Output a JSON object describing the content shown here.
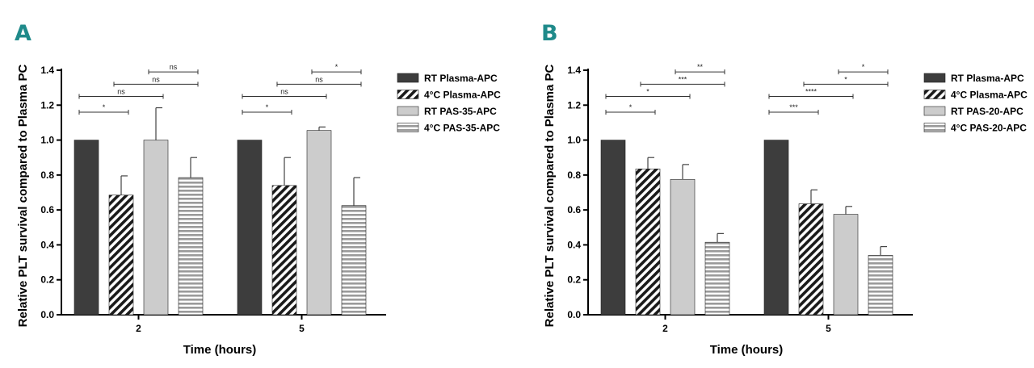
{
  "figure_title": "",
  "colors": {
    "rt_plasma": "#3d3d3d",
    "cold_plasma_stripe": "#1a1a1a",
    "rt_pas": "#cccccc",
    "cold_pas_stripe": "#999999",
    "letter": "#1f8a8a",
    "axis": "#000000"
  },
  "chart_data": [
    {
      "type": "bar",
      "panel": "A",
      "title": "",
      "xlabel": "Time (hours)",
      "ylabel": "Relative PLT survival compared to Plasma PC",
      "ylim": [
        0,
        1.4
      ],
      "yticks": [
        "0.0",
        "0.2",
        "0.4",
        "0.6",
        "0.8",
        "1.0",
        "1.2",
        "1.4"
      ],
      "categories": [
        "2",
        "5"
      ],
      "legend": "top-right",
      "series": [
        {
          "name": "RT  Plasma-APC",
          "values": [
            1.0,
            1.0
          ],
          "errors": [
            0,
            0
          ],
          "fill": "solid-dark"
        },
        {
          "name": "4°C Plasma-APC",
          "values": [
            0.685,
            0.74
          ],
          "errors": [
            0.11,
            0.16
          ],
          "fill": "diagonal"
        },
        {
          "name": "RT  PAS-35-APC",
          "values": [
            1.0,
            1.055
          ],
          "errors": [
            0.185,
            0.02
          ],
          "fill": "solid-light"
        },
        {
          "name": "4°C PAS-35-APC",
          "values": [
            0.785,
            0.625
          ],
          "errors": [
            0.115,
            0.16
          ],
          "fill": "horizontal"
        }
      ],
      "comparisons": [
        {
          "category": "2",
          "from": 0,
          "to": 1,
          "y": 1.16,
          "label": "*"
        },
        {
          "category": "2",
          "from": 0,
          "to": 2,
          "y": 1.25,
          "label": "ns"
        },
        {
          "category": "2",
          "from": 1,
          "to": 3,
          "y": 1.32,
          "label": "ns"
        },
        {
          "category": "2",
          "from": 2,
          "to": 3,
          "y": 1.39,
          "label": "ns"
        },
        {
          "category": "5",
          "from": 0,
          "to": 1,
          "y": 1.16,
          "label": "*"
        },
        {
          "category": "5",
          "from": 0,
          "to": 2,
          "y": 1.25,
          "label": "ns"
        },
        {
          "category": "5",
          "from": 1,
          "to": 3,
          "y": 1.32,
          "label": "ns"
        },
        {
          "category": "5",
          "from": 2,
          "to": 3,
          "y": 1.39,
          "label": "*"
        }
      ]
    },
    {
      "type": "bar",
      "panel": "B",
      "title": "",
      "xlabel": "Time (hours)",
      "ylabel": "Relative PLT survival compared to Plasma PC",
      "ylim": [
        0,
        1.4
      ],
      "yticks": [
        "0.0",
        "0.2",
        "0.4",
        "0.6",
        "0.8",
        "1.0",
        "1.2",
        "1.4"
      ],
      "categories": [
        "2",
        "5"
      ],
      "legend": "top-right",
      "series": [
        {
          "name": "RT  Plasma-APC",
          "values": [
            1.0,
            1.0
          ],
          "errors": [
            0,
            0
          ],
          "fill": "solid-dark"
        },
        {
          "name": "4°C Plasma-APC",
          "values": [
            0.835,
            0.635
          ],
          "errors": [
            0.065,
            0.08
          ],
          "fill": "diagonal"
        },
        {
          "name": "RT  PAS-20-APC",
          "values": [
            0.775,
            0.575
          ],
          "errors": [
            0.085,
            0.045
          ],
          "fill": "solid-light"
        },
        {
          "name": "4°C PAS-20-APC",
          "values": [
            0.415,
            0.34
          ],
          "errors": [
            0.05,
            0.05
          ],
          "fill": "horizontal"
        }
      ],
      "comparisons": [
        {
          "category": "2",
          "from": 0,
          "to": 1,
          "y": 1.16,
          "label": "*"
        },
        {
          "category": "2",
          "from": 0,
          "to": 2,
          "y": 1.25,
          "label": "*"
        },
        {
          "category": "2",
          "from": 1,
          "to": 3,
          "y": 1.32,
          "label": "***"
        },
        {
          "category": "2",
          "from": 2,
          "to": 3,
          "y": 1.39,
          "label": "**"
        },
        {
          "category": "5",
          "from": 0,
          "to": 1,
          "y": 1.16,
          "label": "***"
        },
        {
          "category": "5",
          "from": 0,
          "to": 2,
          "y": 1.25,
          "label": "****"
        },
        {
          "category": "5",
          "from": 1,
          "to": 3,
          "y": 1.32,
          "label": "*"
        },
        {
          "category": "5",
          "from": 2,
          "to": 3,
          "y": 1.39,
          "label": "*"
        }
      ]
    }
  ]
}
